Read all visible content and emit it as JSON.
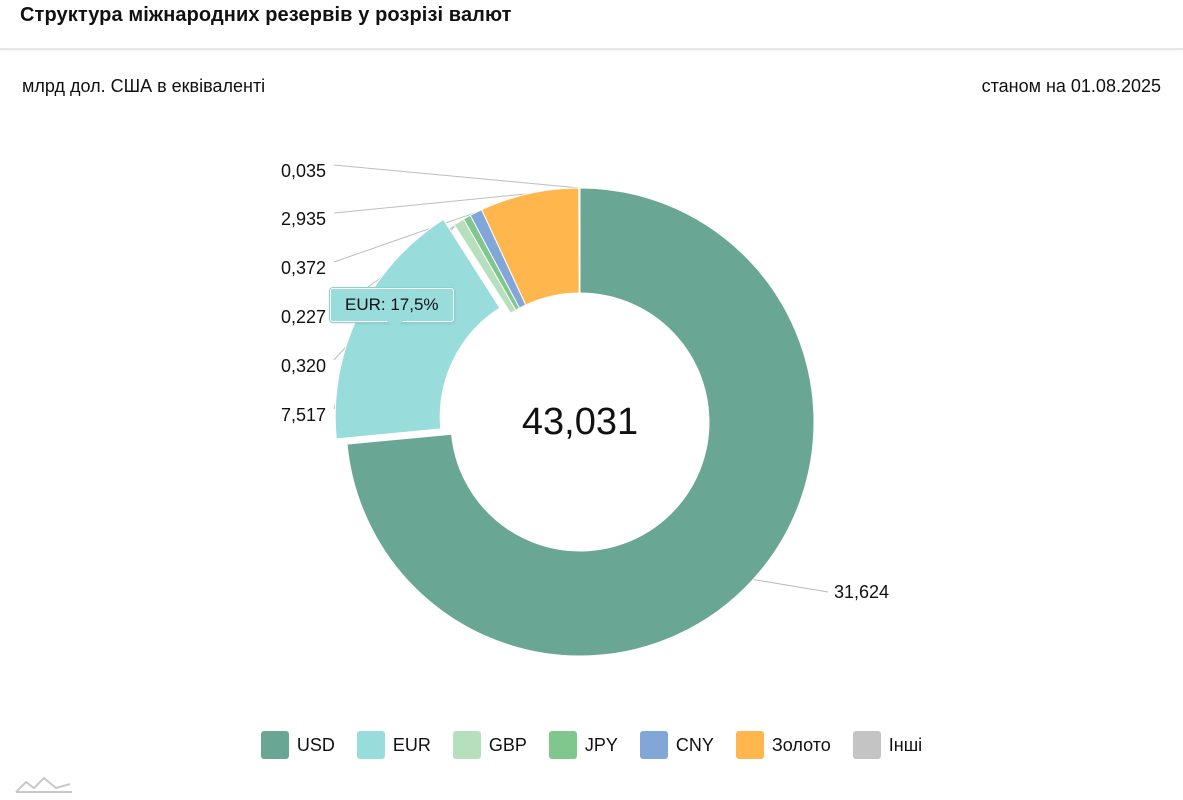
{
  "header": {
    "title": "Структура міжнародних резервів у розрізі валют"
  },
  "subheader": {
    "unit": "млрд дол. США в еквіваленті",
    "as_of": "станом на 01.08.2025"
  },
  "chart_data": {
    "type": "pie",
    "donut": true,
    "center_label": "43,031",
    "categories": [
      "USD",
      "EUR",
      "GBP",
      "JPY",
      "CNY",
      "Золото",
      "Інші"
    ],
    "values": [
      31.624,
      7.517,
      0.32,
      0.227,
      0.372,
      2.935,
      0.035
    ],
    "value_labels": [
      "31,624",
      "7,517",
      "0,320",
      "0,227",
      "0,372",
      "2,935",
      "0,035"
    ],
    "colors": [
      "#69a794",
      "#98dcdb",
      "#b6e0bd",
      "#7fc78c",
      "#83a6d8",
      "#ffb64d",
      "#c4c4c4"
    ],
    "highlighted": "EUR",
    "tooltip": "EUR: 17,5%",
    "legend_position": "bottom"
  }
}
